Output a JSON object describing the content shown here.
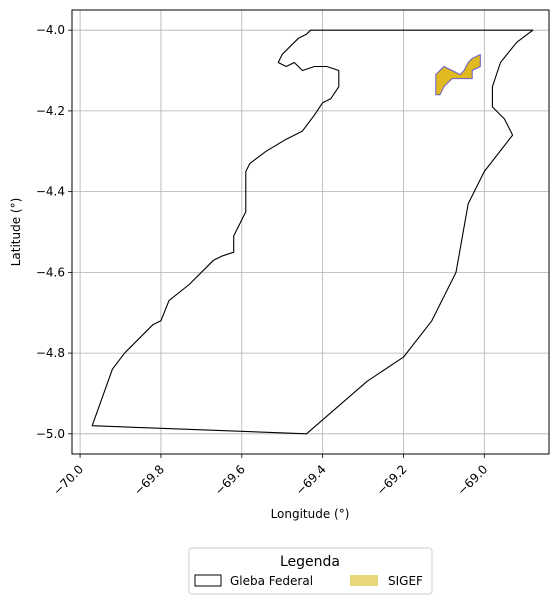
{
  "chart_data": {
    "type": "map",
    "xlabel": "Longitude (°)",
    "ylabel": "Latitude (°)",
    "xlim": [
      -70.02,
      -68.84
    ],
    "ylim": [
      -5.05,
      -3.95
    ],
    "xticks": [
      -70.0,
      -69.8,
      -69.6,
      -69.4,
      -69.2,
      -69.0
    ],
    "xtick_labels": [
      "−70.0",
      "−69.8",
      "−69.6",
      "−69.4",
      "−69.2",
      "−69.0"
    ],
    "yticks": [
      -4.0,
      -4.2,
      -4.4,
      -4.6,
      -4.8,
      -5.0
    ],
    "ytick_labels": [
      "−4.0",
      "−4.2",
      "−4.4",
      "−4.6",
      "−4.8",
      "−5.0"
    ],
    "grid": true,
    "legend": {
      "title": "Legenda",
      "placement": "bottom-center",
      "entries": [
        "Gleba Federal",
        "SIGEF"
      ]
    },
    "series": [
      {
        "name": "Gleba Federal",
        "style": "outline",
        "color": "#000000",
        "polygon": [
          [
            -69.43,
            -4.0
          ],
          [
            -68.88,
            -4.0
          ],
          [
            -68.92,
            -4.03
          ],
          [
            -68.96,
            -4.08
          ],
          [
            -68.98,
            -4.14
          ],
          [
            -68.98,
            -4.19
          ],
          [
            -68.95,
            -4.22
          ],
          [
            -68.93,
            -4.26
          ],
          [
            -69.0,
            -4.35
          ],
          [
            -69.04,
            -4.43
          ],
          [
            -69.07,
            -4.6
          ],
          [
            -69.13,
            -4.72
          ],
          [
            -69.2,
            -4.81
          ],
          [
            -69.29,
            -4.87
          ],
          [
            -69.44,
            -5.0
          ],
          [
            -69.97,
            -4.98
          ],
          [
            -69.92,
            -4.84
          ],
          [
            -69.89,
            -4.8
          ],
          [
            -69.82,
            -4.73
          ],
          [
            -69.8,
            -4.72
          ],
          [
            -69.78,
            -4.67
          ],
          [
            -69.73,
            -4.63
          ],
          [
            -69.67,
            -4.57
          ],
          [
            -69.65,
            -4.56
          ],
          [
            -69.62,
            -4.55
          ],
          [
            -69.62,
            -4.51
          ],
          [
            -69.59,
            -4.45
          ],
          [
            -69.59,
            -4.4
          ],
          [
            -69.59,
            -4.35
          ],
          [
            -69.58,
            -4.33
          ],
          [
            -69.54,
            -4.3
          ],
          [
            -69.49,
            -4.27
          ],
          [
            -69.45,
            -4.25
          ],
          [
            -69.42,
            -4.21
          ],
          [
            -69.4,
            -4.18
          ],
          [
            -69.38,
            -4.17
          ],
          [
            -69.36,
            -4.14
          ],
          [
            -69.36,
            -4.1
          ],
          [
            -69.39,
            -4.09
          ],
          [
            -69.42,
            -4.09
          ],
          [
            -69.45,
            -4.1
          ],
          [
            -69.47,
            -4.08
          ],
          [
            -69.49,
            -4.09
          ],
          [
            -69.51,
            -4.08
          ],
          [
            -69.5,
            -4.06
          ],
          [
            -69.48,
            -4.04
          ],
          [
            -69.46,
            -4.02
          ],
          [
            -69.44,
            -4.01
          ],
          [
            -69.43,
            -4.0
          ]
        ]
      },
      {
        "name": "SIGEF",
        "style": "fill",
        "color": "#e0b820",
        "edge_color": "#6a5acd",
        "polygon": [
          [
            -69.12,
            -4.11
          ],
          [
            -69.1,
            -4.09
          ],
          [
            -69.08,
            -4.1
          ],
          [
            -69.06,
            -4.11
          ],
          [
            -69.05,
            -4.1
          ],
          [
            -69.04,
            -4.08
          ],
          [
            -69.03,
            -4.07
          ],
          [
            -69.01,
            -4.06
          ],
          [
            -69.01,
            -4.09
          ],
          [
            -69.03,
            -4.1
          ],
          [
            -69.03,
            -4.12
          ],
          [
            -69.06,
            -4.12
          ],
          [
            -69.08,
            -4.12
          ],
          [
            -69.1,
            -4.14
          ],
          [
            -69.11,
            -4.16
          ],
          [
            -69.12,
            -4.16
          ],
          [
            -69.12,
            -4.13
          ],
          [
            -69.12,
            -4.11
          ]
        ]
      }
    ]
  }
}
